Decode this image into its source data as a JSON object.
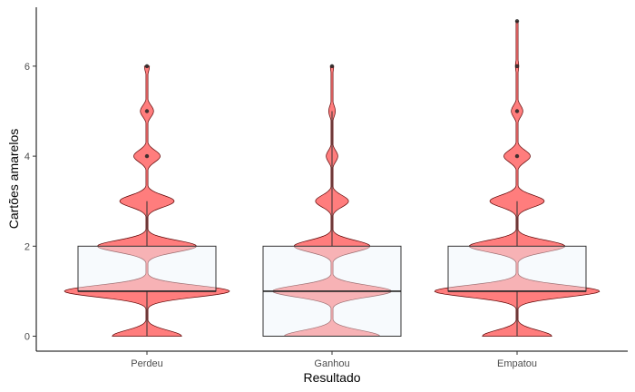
{
  "chart_data": {
    "type": "violin",
    "xlabel": "Resultado",
    "ylabel": "Cartões amarelos",
    "ylim": [
      -0.3,
      7.3
    ],
    "yticks": [
      0,
      2,
      4,
      6
    ],
    "grid": false,
    "categories": [
      "Perdeu",
      "Ganhou",
      "Empatou"
    ],
    "violin_color": "#ff6666",
    "box_fill": "#eef5fa",
    "groups": [
      {
        "category": "Perdeu",
        "max_y": 6,
        "density": [
          [
            0,
            0.42
          ],
          [
            1,
            1.0
          ],
          [
            2,
            0.6
          ],
          [
            3,
            0.33
          ],
          [
            4,
            0.16
          ],
          [
            5,
            0.08
          ],
          [
            6,
            0.03
          ]
        ],
        "box": {
          "q1": 1,
          "median": 1,
          "q3": 2,
          "whisker_low": 0,
          "whisker_high": 3
        },
        "outliers": [
          4,
          5,
          6
        ]
      },
      {
        "category": "Ganhou",
        "max_y": 6,
        "density": [
          [
            0,
            0.58
          ],
          [
            1,
            0.72
          ],
          [
            2,
            0.46
          ],
          [
            3,
            0.2
          ],
          [
            4,
            0.07
          ],
          [
            5,
            0.04
          ],
          [
            6,
            0.02
          ]
        ],
        "box": {
          "q1": 0,
          "median": 1,
          "q3": 2,
          "whisker_low": 0,
          "whisker_high": 5
        },
        "outliers": [
          6
        ]
      },
      {
        "category": "Empatou",
        "max_y": 7,
        "density": [
          [
            0,
            0.42
          ],
          [
            1,
            1.0
          ],
          [
            2,
            0.58
          ],
          [
            3,
            0.33
          ],
          [
            4,
            0.16
          ],
          [
            5,
            0.07
          ],
          [
            6,
            0.02
          ],
          [
            7,
            0.01
          ]
        ],
        "box": {
          "q1": 1,
          "median": 1,
          "q3": 2,
          "whisker_low": 0,
          "whisker_high": 3
        },
        "outliers": [
          4,
          5,
          6,
          7
        ]
      }
    ]
  }
}
